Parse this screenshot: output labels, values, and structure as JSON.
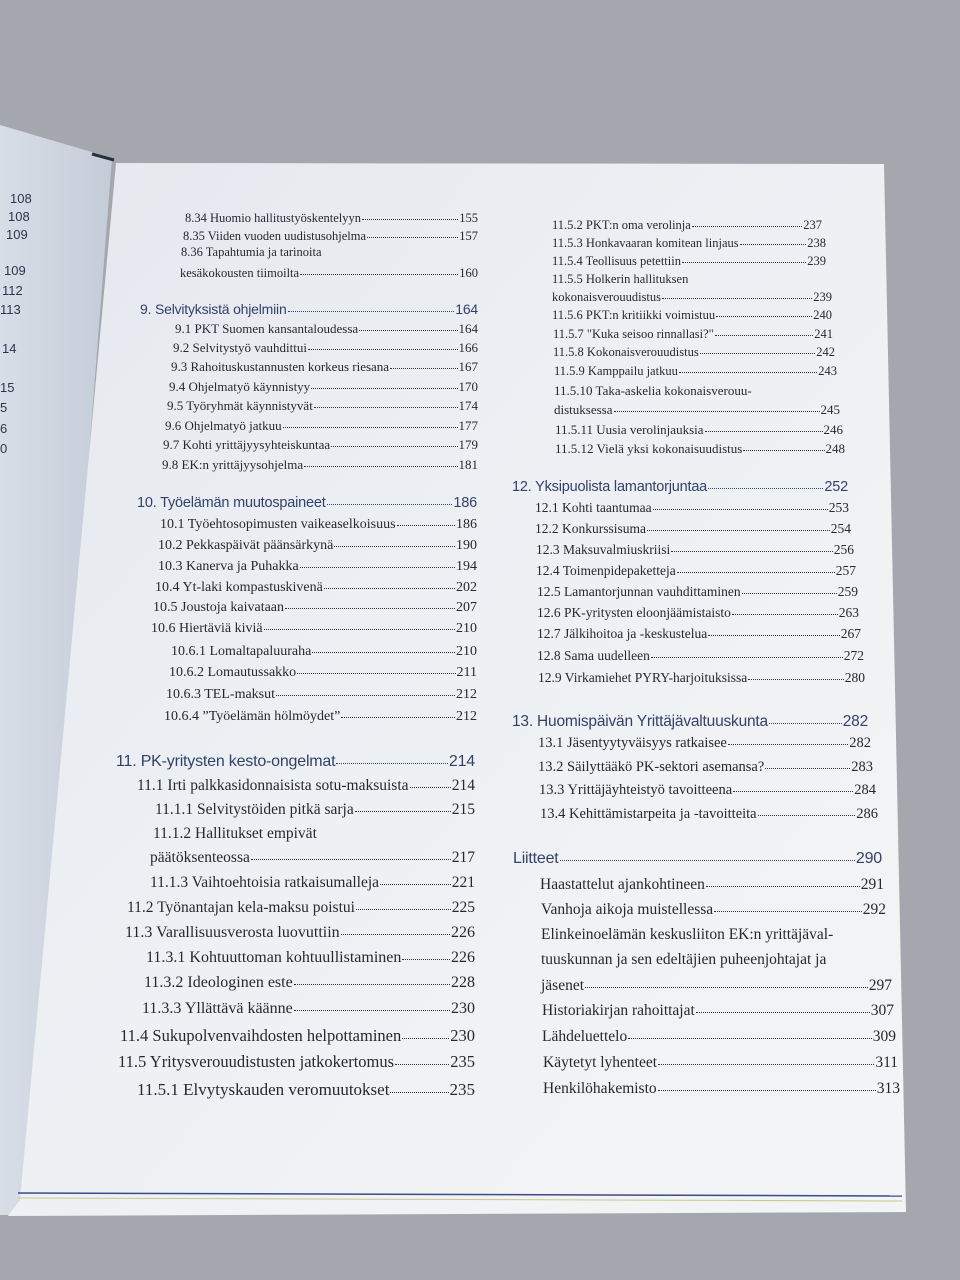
{
  "left_page_numbers": [
    "108",
    "108",
    "109",
    "109",
    "112",
    "113",
    "14",
    "15",
    "5",
    "6",
    "0"
  ],
  "left_column": [
    {
      "label": "8.34 Huomio hallitustyöskentelyyn",
      "page": "155"
    },
    {
      "label": "8.35 Viiden vuoden uudistusohjelma",
      "page": "157"
    },
    {
      "label": "8.36 Tapahtumia ja tarinoita",
      "label_cont": "kesäkokousten tiimoilta",
      "page": "160"
    },
    {
      "label": "9. Selvityksistä ohjelmiin",
      "page": "164",
      "chapter": true
    },
    {
      "label": "9.1 PKT Suomen kansantaloudessa",
      "page": "164"
    },
    {
      "label": "9.2 Selvitystyö vauhdittui",
      "page": "166"
    },
    {
      "label": "9.3 Rahoituskustannusten korkeus riesana",
      "page": "167"
    },
    {
      "label": "9.4 Ohjelmatyö käynnistyy",
      "page": "170"
    },
    {
      "label": "9.5 Työryhmät käynnistyvät",
      "page": "174"
    },
    {
      "label": "9.6 Ohjelmatyö jatkuu",
      "page": "177"
    },
    {
      "label": "9.7 Kohti yrittäjyysyhteiskuntaa",
      "page": "179"
    },
    {
      "label": "9.8 EK:n yrittäjyysohjelma",
      "page": "181"
    },
    {
      "label": "10. Työelämän muutospaineet",
      "page": "186",
      "chapter": true
    },
    {
      "label": "10.1 Työehtosopimusten vaikeaselkoisuus",
      "page": "186"
    },
    {
      "label": "10.2 Pekkaspäivät päänsärkynä",
      "page": "190"
    },
    {
      "label": "10.3 Kanerva ja Puhakka",
      "page": "194"
    },
    {
      "label": "10.4 Yt-laki kompastuskivenä",
      "page": "202"
    },
    {
      "label": "10.5 Joustoja kaivataan",
      "page": "207"
    },
    {
      "label": "10.6 Hiertäviä kiviä",
      "page": "210"
    },
    {
      "label": "10.6.1 Lomaltapaluuraha",
      "page": "210"
    },
    {
      "label": "10.6.2 Lomautussakko",
      "page": "211"
    },
    {
      "label": "10.6.3 TEL-maksut",
      "page": "212"
    },
    {
      "label": "10.6.4 ”Työelämän hölmöydet”",
      "page": "212"
    },
    {
      "label": "11. PK-yritysten kesto-ongelmat",
      "page": "214",
      "chapter": true
    },
    {
      "label": "11.1 Irti palkkasidonnaisista sotu-maksuista",
      "page": "214"
    },
    {
      "label": "11.1.1 Selvitystöiden pitkä sarja",
      "page": "215"
    },
    {
      "label": "11.1.2 Hallitukset empivät",
      "label_cont": "päätöksenteossa",
      "page": "217"
    },
    {
      "label": "11.1.3 Vaihtoehtoisia ratkaisumalleja",
      "page": "221"
    },
    {
      "label": "11.2 Työnantajan kela-maksu poistui",
      "page": "225"
    },
    {
      "label": "11.3 Varallisuusverosta luovuttiin",
      "page": "226"
    },
    {
      "label": "11.3.1 Kohtuuttoman kohtuullistaminen",
      "page": "226"
    },
    {
      "label": "11.3.2 Ideologinen este",
      "page": "228"
    },
    {
      "label": "11.3.3 Yllättävä käänne",
      "page": "230"
    },
    {
      "label": "11.4 Sukupolvenvaihdosten helpottaminen",
      "page": "230"
    },
    {
      "label": "11.5 Yritysverouudistusten jatkokertomus",
      "page": "235"
    },
    {
      "label": "11.5.1 Elvytyskauden veromuutokset",
      "page": "235"
    }
  ],
  "right_column": [
    {
      "label": "11.5.2 PKT:n oma verolinja",
      "page": "237"
    },
    {
      "label": "11.5.3 Honkavaaran komitean linjaus",
      "page": "238"
    },
    {
      "label": "11.5.4 Teollisuus petettiin",
      "page": "239"
    },
    {
      "label": "11.5.5 Holkerin hallituksen",
      "label_cont": "kokonaisverouudistus",
      "page": "239"
    },
    {
      "label": "11.5.6 PKT:n kritiikki voimistuu",
      "page": "240"
    },
    {
      "label": "11.5.7 \"Kuka seisoo rinnallasi?\"",
      "page": "241"
    },
    {
      "label": "11.5.8 Kokonaisverouudistus",
      "page": "242"
    },
    {
      "label": "11.5.9 Kamppailu jatkuu",
      "page": "243"
    },
    {
      "label": "11.5.10 Taka-askelia kokonaisverouu-",
      "label_cont": "distuksessa",
      "page": "245"
    },
    {
      "label": "11.5.11 Uusia verolinjauksia",
      "page": "246"
    },
    {
      "label": "11.5.12 Vielä yksi kokonaisuudistus",
      "page": "248"
    },
    {
      "label": "12. Yksipuolista lamantorjuntaa",
      "page": "252",
      "chapter": true
    },
    {
      "label": "12.1 Kohti taantumaa",
      "page": "253"
    },
    {
      "label": "12.2 Konkurssisuma",
      "page": "254"
    },
    {
      "label": "12.3 Maksuvalmiuskriisi",
      "page": "256"
    },
    {
      "label": "12.4 Toimenpidepaketteja",
      "page": "257"
    },
    {
      "label": "12.5 Lamantorjunnan vauhdittaminen",
      "page": "259"
    },
    {
      "label": "12.6 PK-yritysten eloonjäämistaisto",
      "page": "263"
    },
    {
      "label": "12.7 Jälkihoitoa ja -keskustelua",
      "page": "267"
    },
    {
      "label": "12.8 Sama uudelleen",
      "page": "272"
    },
    {
      "label": "12.9 Virkamiehet PYRY-harjoituksissa",
      "page": "280"
    },
    {
      "label": "13. Huomispäivän Yrittäjävaltuuskunta",
      "page": "282",
      "chapter": true
    },
    {
      "label": "13.1 Jäsentyytyväisyys ratkaisee",
      "page": "282"
    },
    {
      "label": "13.2 Säilyttääkö PK-sektori asemansa?",
      "page": "283"
    },
    {
      "label": "13.3 Yrittäjäyhteistyö tavoitteena",
      "page": "284"
    },
    {
      "label": "13.4 Kehittämistarpeita ja -tavoitteita",
      "page": "286"
    },
    {
      "label": "Liitteet",
      "page": "290",
      "chapter": true
    },
    {
      "label": "Haastattelut ajankohtineen",
      "page": "291"
    },
    {
      "label": "Vanhoja aikoja muistellessa",
      "page": "292"
    },
    {
      "label": "Elinkeinoelämän keskusliiton EK:n yrittäjäval-",
      "label_cont": "tuuskunnan ja sen edeltäjien puheenjohtajat ja",
      "label_cont2": "jäsenet",
      "page": "297"
    },
    {
      "label": "Historiakirjan rahoittajat",
      "page": "307"
    },
    {
      "label": "Lähdeluettelo",
      "page": "309"
    },
    {
      "label": "Käytetyt lyhenteet",
      "page": "311"
    },
    {
      "label": "Henkilöhakemisto",
      "page": "313"
    }
  ]
}
